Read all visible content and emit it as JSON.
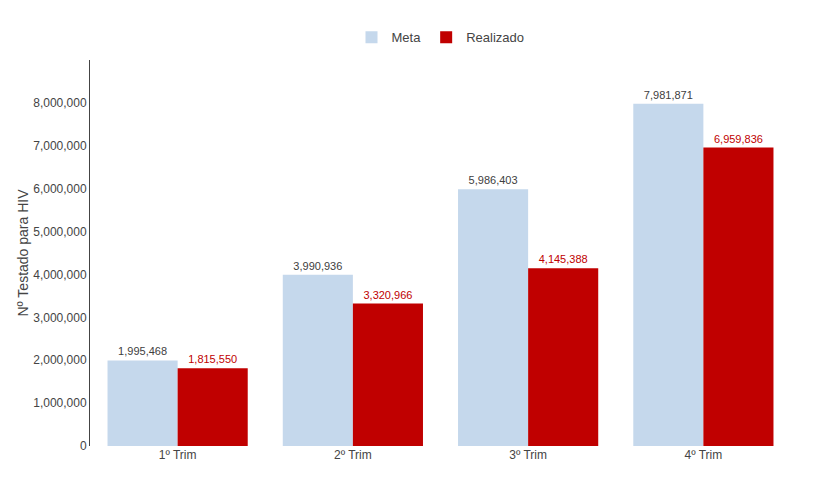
{
  "chart_data": {
    "type": "bar",
    "categories": [
      "1º Trim",
      "2º Trim",
      "3º Trim",
      "4º Trim"
    ],
    "series": [
      {
        "name": "Meta",
        "color": "#C5D8EC",
        "values": [
          1995468,
          3990936,
          5986403,
          7981871
        ],
        "value_labels": [
          "1,995,468",
          "3,990,936",
          "5,986,403",
          "7,981,871"
        ]
      },
      {
        "name": "Realizado",
        "color": "#C00000",
        "values": [
          1815550,
          3320966,
          4145388,
          6959836
        ],
        "value_labels": [
          "1,815,550",
          "3,320,966",
          "4,145,388",
          "6,959,836"
        ]
      }
    ],
    "ylabel": "Nº Testado para HIV",
    "ylim": [
      0,
      9000000
    ],
    "yticks": [
      0,
      {
        "value": 1000000,
        "label": "1,000,000"
      },
      {
        "value": 2000000,
        "label": "2,000,000"
      },
      {
        "value": 3000000,
        "label": "3,000,000"
      },
      {
        "value": 4000000,
        "label": "4,000,000"
      },
      {
        "value": 5000000,
        "label": "5,000,000"
      },
      {
        "value": 6000000,
        "label": "6,000,000"
      },
      {
        "value": 7000000,
        "label": "7,000,000"
      },
      {
        "value": 8000000,
        "label": "8,000,000"
      }
    ],
    "grid": false,
    "legend": "top",
    "data_labels": true
  }
}
